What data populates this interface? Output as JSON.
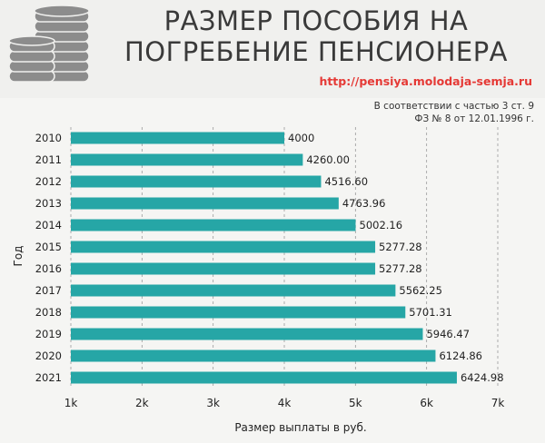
{
  "header": {
    "title_line1": "РАЗМЕР ПОСОБИЯ НА",
    "title_line2": "ПОГРЕБЕНИЕ ПЕНСИОНЕРА",
    "url": "http://pensiya.molodaja-semja.ru",
    "note_line1": "В соответствии с частью 3 ст. 9",
    "note_line2": "ФЗ № 8 от 12.01.1996 г."
  },
  "colors": {
    "bar": "#26a6a6",
    "title": "#3a3a3a",
    "url": "#e53935",
    "coin": "#8c8c8c"
  },
  "icons": {
    "logo": "coin-stack-icon"
  },
  "chart_data": {
    "type": "bar",
    "orientation": "horizontal",
    "categories": [
      "2010",
      "2011",
      "2012",
      "2013",
      "2014",
      "2015",
      "2016",
      "2017",
      "2018",
      "2019",
      "2020",
      "2021"
    ],
    "values": [
      4000,
      4260.0,
      4516.6,
      4763.96,
      5002.16,
      5277.28,
      5277.28,
      5562.25,
      5701.31,
      5946.47,
      6124.86,
      6424.98
    ],
    "value_labels": [
      "4000",
      "4260.00",
      "4516.60",
      "4763.96",
      "5002.16",
      "5277.28",
      "5277.28",
      "5562.25",
      "5701.31",
      "5946.47",
      "6124.86",
      "6424.98"
    ],
    "xlabel": "Размер выплаты в руб.",
    "ylabel": "Год",
    "xlim": [
      1000,
      7000
    ],
    "xticks": [
      1000,
      2000,
      3000,
      4000,
      5000,
      6000,
      7000
    ],
    "xtick_labels": [
      "1k",
      "2k",
      "3k",
      "4k",
      "5k",
      "6k",
      "7k"
    ],
    "grid": "vertical dashed"
  }
}
